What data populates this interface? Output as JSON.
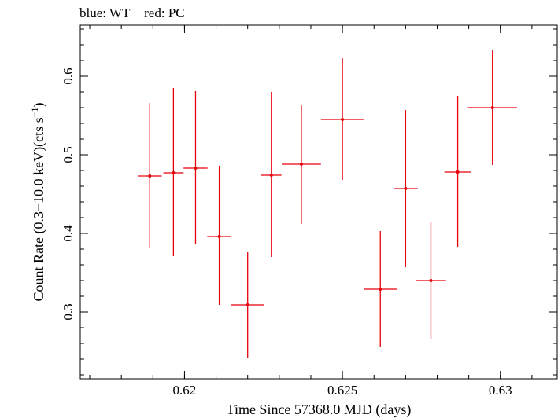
{
  "chart_data": {
    "type": "scatter",
    "title": "blue: WT − red: PC",
    "xlabel": "Time Since 57368.0 MJD (days)",
    "ylabel_main": "Count Rate (0.3−10.0 keV)(cts s",
    "ylabel_sup": "−1",
    "ylabel_close": ")",
    "xlim": [
      0.6167,
      0.6318
    ],
    "ylim": [
      0.215,
      0.665
    ],
    "x_ticks": [
      {
        "value": 0.62,
        "label": "0.62"
      },
      {
        "value": 0.625,
        "label": "0.625"
      },
      {
        "value": 0.63,
        "label": "0.63"
      }
    ],
    "y_ticks": [
      {
        "value": 0.3,
        "label": "0.3"
      },
      {
        "value": 0.4,
        "label": "0.4"
      },
      {
        "value": 0.5,
        "label": "0.5"
      },
      {
        "value": 0.6,
        "label": "0.6"
      }
    ],
    "x_minor_step": 0.001,
    "y_minor_step": 0.02,
    "grid": false,
    "series": [
      {
        "color": "#e8000b",
        "points": [
          {
            "x": 0.6189,
            "xerr": 0.00038,
            "y": 0.473,
            "ylo": 0.381,
            "yhi": 0.566
          },
          {
            "x": 0.61965,
            "xerr": 0.00032,
            "y": 0.477,
            "ylo": 0.371,
            "yhi": 0.585
          },
          {
            "x": 0.62035,
            "xerr": 0.00038,
            "y": 0.483,
            "ylo": 0.386,
            "yhi": 0.581
          },
          {
            "x": 0.6211,
            "xerr": 0.00038,
            "y": 0.396,
            "ylo": 0.309,
            "yhi": 0.486
          },
          {
            "x": 0.622,
            "xerr": 0.00052,
            "y": 0.309,
            "ylo": 0.242,
            "yhi": 0.376
          },
          {
            "x": 0.62275,
            "xerr": 0.00032,
            "y": 0.474,
            "ylo": 0.37,
            "yhi": 0.58
          },
          {
            "x": 0.6237,
            "xerr": 0.00062,
            "y": 0.488,
            "ylo": 0.412,
            "yhi": 0.564
          },
          {
            "x": 0.625,
            "xerr": 0.00068,
            "y": 0.545,
            "ylo": 0.468,
            "yhi": 0.623
          },
          {
            "x": 0.6262,
            "xerr": 0.00052,
            "y": 0.329,
            "ylo": 0.255,
            "yhi": 0.403
          },
          {
            "x": 0.627,
            "xerr": 0.00038,
            "y": 0.457,
            "ylo": 0.357,
            "yhi": 0.557
          },
          {
            "x": 0.6278,
            "xerr": 0.00048,
            "y": 0.34,
            "ylo": 0.266,
            "yhi": 0.414
          },
          {
            "x": 0.62865,
            "xerr": 0.00042,
            "y": 0.478,
            "ylo": 0.383,
            "yhi": 0.575
          },
          {
            "x": 0.62975,
            "xerr": 0.00078,
            "y": 0.56,
            "ylo": 0.487,
            "yhi": 0.633
          }
        ]
      }
    ]
  }
}
